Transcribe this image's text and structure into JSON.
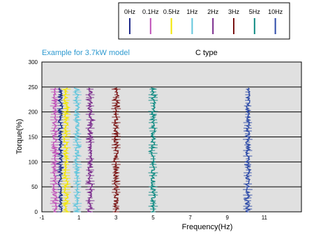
{
  "chart_data": {
    "type": "scatter",
    "title": "C type",
    "annotation": "Example for 3.7kW model",
    "xlabel": "Frequency(Hz)",
    "ylabel": "Torque(%)",
    "xlim": [
      -1,
      13
    ],
    "ylim": [
      0,
      300
    ],
    "x_ticks": [
      "-1",
      "1",
      "3",
      "5",
      "7",
      "9",
      "11"
    ],
    "y_ticks": [
      "0",
      "50",
      "100",
      "150",
      "200",
      "250",
      "300"
    ],
    "grid": "horizontal",
    "legend_position": "top-right",
    "series": [
      {
        "name": "0Hz",
        "color": "#1f2a8a",
        "x_center": 0.0,
        "torque_range": [
          0,
          250
        ]
      },
      {
        "name": "0.1Hz",
        "color": "#c050b8",
        "x_center": -0.3,
        "torque_range": [
          0,
          250
        ]
      },
      {
        "name": "0.5Hz",
        "color": "#f2e600",
        "x_center": 0.3,
        "torque_range": [
          0,
          250
        ]
      },
      {
        "name": "1Hz",
        "color": "#62c6dc",
        "x_center": 0.9,
        "torque_range": [
          0,
          250
        ]
      },
      {
        "name": "2Hz",
        "color": "#7a2a8c",
        "x_center": 1.6,
        "torque_range": [
          0,
          250
        ]
      },
      {
        "name": "3Hz",
        "color": "#7a1414",
        "x_center": 3.0,
        "torque_range": [
          0,
          250
        ]
      },
      {
        "name": "5Hz",
        "color": "#0d8a82",
        "x_center": 5.0,
        "torque_range": [
          0,
          250
        ]
      },
      {
        "name": "10Hz",
        "color": "#2c4aa8",
        "x_center": 10.1,
        "torque_range": [
          0,
          250
        ]
      }
    ]
  }
}
